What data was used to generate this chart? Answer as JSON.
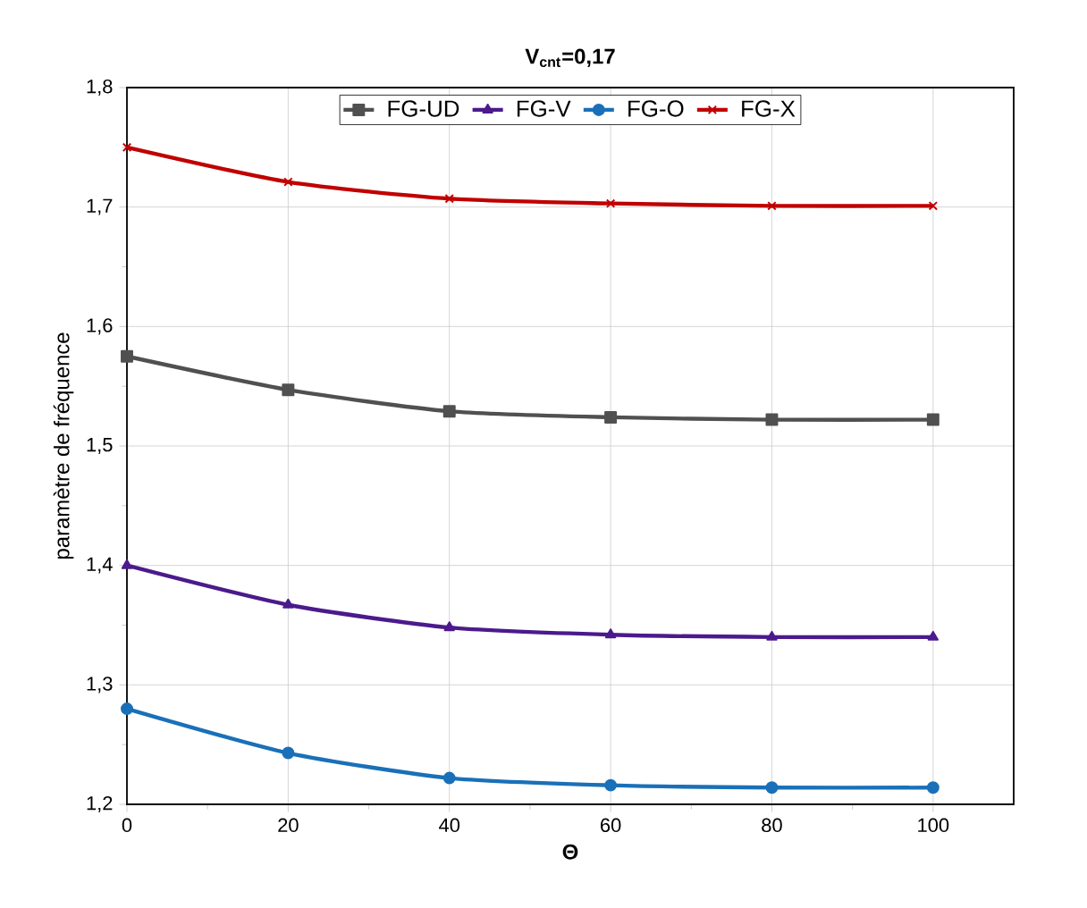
{
  "chart_data": {
    "type": "line",
    "title": "V$_{cnt}$=0,17",
    "xlabel": "Θ",
    "ylabel": "paramètre de fréquence",
    "x": [
      0,
      20,
      40,
      60,
      80,
      100
    ],
    "series": [
      {
        "name": "FG-UD",
        "color": "#505050",
        "marker": "square",
        "values": [
          1.575,
          1.547,
          1.529,
          1.524,
          1.522,
          1.522
        ]
      },
      {
        "name": "FG-V",
        "color": "#4b1a8c",
        "marker": "triangle",
        "values": [
          1.4,
          1.367,
          1.348,
          1.342,
          1.34,
          1.34
        ]
      },
      {
        "name": "FG-O",
        "color": "#1a70b8",
        "marker": "circle",
        "values": [
          1.28,
          1.243,
          1.222,
          1.216,
          1.214,
          1.214
        ]
      },
      {
        "name": "FG-X",
        "color": "#c00000",
        "marker": "cross",
        "values": [
          1.75,
          1.721,
          1.707,
          1.703,
          1.701,
          1.701
        ]
      }
    ],
    "xlim": [
      0,
      110
    ],
    "ylim": [
      1.2,
      1.8
    ],
    "xticks": [
      0,
      20,
      40,
      60,
      80,
      100
    ],
    "yticks": [
      {
        "value": 1.2,
        "label": "1,2"
      },
      {
        "value": 1.3,
        "label": "1,3"
      },
      {
        "value": 1.4,
        "label": "1,4"
      },
      {
        "value": 1.5,
        "label": "1,5"
      },
      {
        "value": 1.6,
        "label": "1,6"
      },
      {
        "value": 1.7,
        "label": "1,7"
      },
      {
        "value": 1.8,
        "label": "1,8"
      }
    ],
    "grid": true,
    "legend": "top",
    "line_style": "solid"
  }
}
